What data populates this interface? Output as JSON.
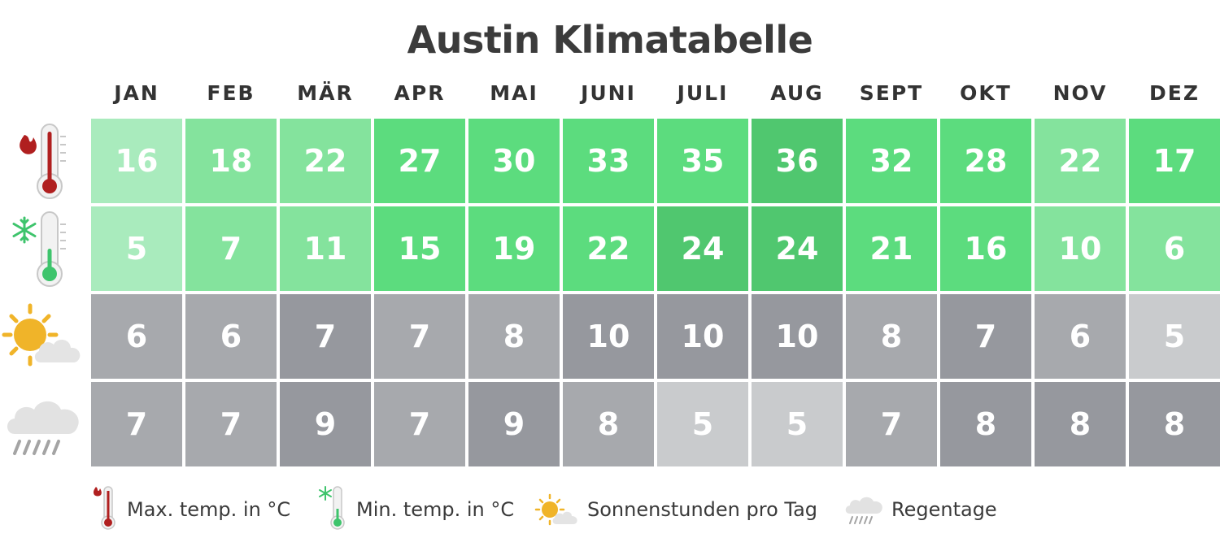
{
  "title": "Austin Klimatabelle",
  "months": [
    "JAN",
    "FEB",
    "MÄR",
    "APR",
    "MAI",
    "JUNI",
    "JULI",
    "AUG",
    "SEPT",
    "OKT",
    "NOV",
    "DEZ"
  ],
  "legend": {
    "max_temp": "Max. temp. in °C",
    "min_temp": "Min. temp. in °C",
    "sun": "Sonnenstunden pro Tag",
    "rain": "Regentage"
  },
  "colors": {
    "green_scale": [
      "#a9ebbd",
      "#84e39d",
      "#5cdc7e",
      "#50c76f"
    ],
    "gray_scale": [
      "#c9cbcd",
      "#a7a9ad",
      "#96989e"
    ]
  },
  "chart_data": {
    "type": "table",
    "title": "Austin Klimatabelle",
    "categories": [
      "JAN",
      "FEB",
      "MÄR",
      "APR",
      "MAI",
      "JUNI",
      "JULI",
      "AUG",
      "SEPT",
      "OKT",
      "NOV",
      "DEZ"
    ],
    "series": [
      {
        "name": "Max. temp. in °C",
        "icon": "max-temp-thermometer-icon",
        "palette": "green",
        "values": [
          16,
          18,
          22,
          27,
          30,
          33,
          35,
          36,
          32,
          28,
          22,
          17
        ],
        "shades": [
          0,
          1,
          1,
          2,
          2,
          2,
          2,
          3,
          2,
          2,
          1,
          2
        ]
      },
      {
        "name": "Min. temp. in °C",
        "icon": "min-temp-thermometer-icon",
        "palette": "green",
        "values": [
          5,
          7,
          11,
          15,
          19,
          22,
          24,
          24,
          21,
          16,
          10,
          6
        ],
        "shades": [
          0,
          1,
          1,
          2,
          2,
          2,
          3,
          3,
          2,
          2,
          1,
          1
        ]
      },
      {
        "name": "Sonnenstunden pro Tag",
        "icon": "sun-cloud-icon",
        "palette": "gray",
        "values": [
          6,
          6,
          7,
          7,
          8,
          10,
          10,
          10,
          8,
          7,
          6,
          5
        ],
        "shades": [
          1,
          1,
          2,
          1,
          1,
          2,
          2,
          2,
          1,
          2,
          1,
          0
        ]
      },
      {
        "name": "Regentage",
        "icon": "rain-cloud-icon",
        "palette": "gray",
        "values": [
          7,
          7,
          9,
          7,
          9,
          8,
          5,
          5,
          7,
          8,
          8,
          8
        ],
        "shades": [
          1,
          1,
          2,
          1,
          2,
          1,
          0,
          0,
          1,
          2,
          2,
          2
        ]
      }
    ]
  }
}
